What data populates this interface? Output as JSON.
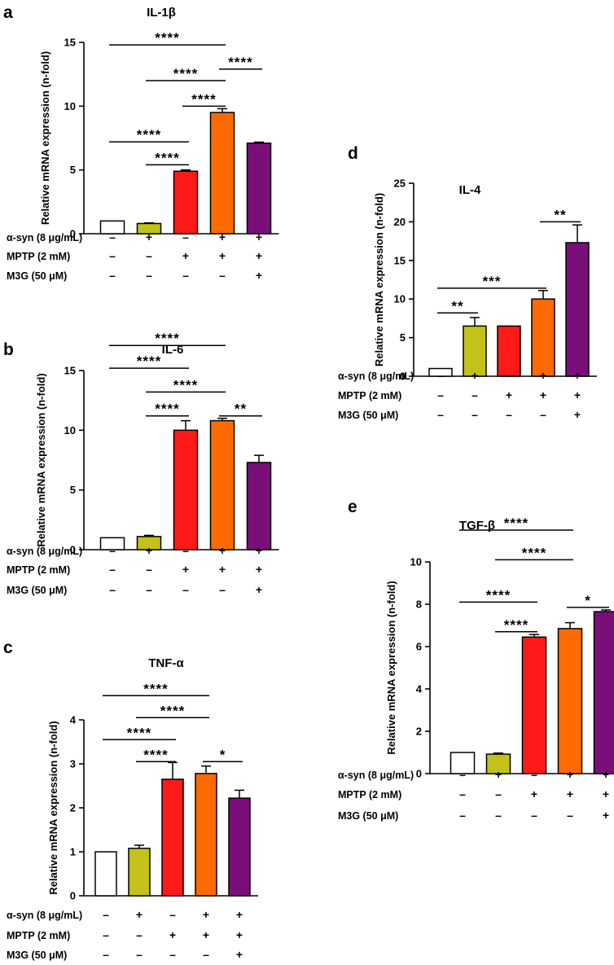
{
  "chart_data": [
    {
      "type": "bar",
      "panel": "a",
      "title": "IL-1β",
      "ylabel": "Relative mRNA expression (n-fold)",
      "xlabel": "",
      "ylim": [
        0,
        15
      ],
      "yticks": [
        "0",
        "5",
        "10",
        "15"
      ],
      "categories": [
        "Control",
        "α-syn",
        "MPTP",
        "α-syn + MPTP",
        "α-syn + MPTP + M3G"
      ],
      "values": [
        1.0,
        0.8,
        4.9,
        9.5,
        7.1
      ],
      "errors": [
        0,
        0.05,
        0.1,
        0.3,
        0.08
      ],
      "colors": [
        "#ffffff",
        "#c2c21a",
        "#ff1a1a",
        "#ff6a00",
        "#7a0f7a"
      ],
      "condition_labels": [
        "α-syn (8 μg/mL)",
        "MPTP (2 mM)",
        "M3G (50 μM)"
      ],
      "conditions": [
        [
          "–",
          "+",
          "–",
          "+",
          "+"
        ],
        [
          "–",
          "–",
          "+",
          "+",
          "+"
        ],
        [
          "–",
          "–",
          "–",
          "–",
          "+"
        ]
      ],
      "significance": [
        {
          "from": 0,
          "to": 3,
          "label": "****",
          "level": 14.8
        },
        {
          "from": 3,
          "to": 4,
          "label": "****",
          "level": 12.9
        },
        {
          "from": 1,
          "to": 3,
          "label": "****",
          "level": 12.0
        },
        {
          "from": 2,
          "to": 3,
          "label": "****",
          "level": 10.0
        },
        {
          "from": 0,
          "to": 2,
          "label": "****",
          "level": 7.2
        },
        {
          "from": 1,
          "to": 2,
          "label": "****",
          "level": 5.4
        }
      ]
    },
    {
      "type": "bar",
      "panel": "b",
      "title": "IL-6",
      "ylabel": "Relative mRNA expression (n-fold)",
      "xlabel": "",
      "ylim": [
        0,
        15
      ],
      "yticks": [
        "0",
        "5",
        "10",
        "15"
      ],
      "categories": [
        "Control",
        "α-syn",
        "MPTP",
        "α-syn + MPTP",
        "α-syn + MPTP + M3G"
      ],
      "values": [
        1.0,
        1.1,
        10.0,
        10.8,
        7.3
      ],
      "errors": [
        0,
        0.1,
        0.8,
        0.2,
        0.6
      ],
      "colors": [
        "#ffffff",
        "#c2c21a",
        "#ff1a1a",
        "#ff6a00",
        "#7a0f7a"
      ],
      "condition_labels": [
        "α-syn (8 μg/mL)",
        "MPTP (2 mM)",
        "M3G (50 μM)"
      ],
      "conditions": [
        [
          "–",
          "+",
          "–",
          "+",
          "+"
        ],
        [
          "–",
          "–",
          "+",
          "+",
          "+"
        ],
        [
          "–",
          "–",
          "–",
          "–",
          "+"
        ]
      ],
      "significance": [
        {
          "from": 0,
          "to": 3,
          "label": "****",
          "level": 17.1
        },
        {
          "from": 0,
          "to": 2,
          "label": "****",
          "level": 15.2
        },
        {
          "from": 1,
          "to": 3,
          "label": "****",
          "level": 13.2
        },
        {
          "from": 1,
          "to": 2,
          "label": "****",
          "level": 11.2
        },
        {
          "from": 3,
          "to": 4,
          "label": "**",
          "level": 11.2
        }
      ]
    },
    {
      "type": "bar",
      "panel": "c",
      "title": "TNF-α",
      "ylabel": "Relative mRNA expression (n-fold)",
      "xlabel": "",
      "ylim": [
        0,
        4
      ],
      "yticks": [
        "0",
        "1",
        "2",
        "3",
        "4"
      ],
      "categories": [
        "Control",
        "α-syn",
        "MPTP",
        "α-syn + MPTP",
        "α-syn + MPTP + M3G"
      ],
      "values": [
        1.0,
        1.08,
        2.65,
        2.78,
        2.22
      ],
      "errors": [
        0,
        0.07,
        0.38,
        0.17,
        0.18
      ],
      "colors": [
        "#ffffff",
        "#c2c21a",
        "#ff1a1a",
        "#ff6a00",
        "#7a0f7a"
      ],
      "condition_labels": [
        "α-syn (8 μg/mL)",
        "MPTP (2 mM)",
        "M3G (50 μM)"
      ],
      "conditions": [
        [
          "–",
          "+",
          "–",
          "+",
          "+"
        ],
        [
          "–",
          "–",
          "+",
          "+",
          "+"
        ],
        [
          "–",
          "–",
          "–",
          "–",
          "+"
        ]
      ],
      "significance": [
        {
          "from": 0,
          "to": 3,
          "label": "****",
          "level": 4.55
        },
        {
          "from": 1,
          "to": 3,
          "label": "****",
          "level": 4.05
        },
        {
          "from": 0,
          "to": 2,
          "label": "****",
          "level": 3.55
        },
        {
          "from": 1,
          "to": 2,
          "label": "****",
          "level": 3.05
        },
        {
          "from": 3,
          "to": 4,
          "label": "*",
          "level": 3.05
        }
      ]
    },
    {
      "type": "bar",
      "panel": "d",
      "title": "IL-4",
      "ylabel": "Relative mRNA expression (n-fold)",
      "xlabel": "",
      "ylim": [
        0,
        25
      ],
      "yticks": [
        "0",
        "5",
        "10",
        "15",
        "20",
        "25"
      ],
      "categories": [
        "Control",
        "α-syn",
        "MPTP",
        "α-syn + MPTP",
        "α-syn + MPTP + M3G"
      ],
      "values": [
        1.0,
        6.5,
        6.5,
        10.0,
        17.3
      ],
      "errors": [
        0,
        1.1,
        0,
        1.1,
        2.3
      ],
      "colors": [
        "#ffffff",
        "#c2c21a",
        "#ff1a1a",
        "#ff6a00",
        "#7a0f7a"
      ],
      "condition_labels": [
        "α-syn (8 μg/mL)",
        "MPTP (2 mM)",
        "M3G (50 μM)"
      ],
      "conditions": [
        [
          "–",
          "+",
          "–",
          "+",
          "+"
        ],
        [
          "–",
          "–",
          "+",
          "+",
          "+"
        ],
        [
          "–",
          "–",
          "–",
          "–",
          "+"
        ]
      ],
      "significance": [
        {
          "from": 3,
          "to": 4,
          "label": "**",
          "level": 20.0
        },
        {
          "from": 0,
          "to": 3,
          "label": "***",
          "level": 11.4
        },
        {
          "from": 0,
          "to": 1,
          "label": "**",
          "level": 8.2
        }
      ]
    },
    {
      "type": "bar",
      "panel": "e",
      "title": "TGF-β",
      "ylabel": "Relative mRNA expression (n-fold)",
      "xlabel": "",
      "ylim": [
        0,
        10
      ],
      "yticks": [
        "0",
        "2",
        "4",
        "6",
        "8",
        "10"
      ],
      "categories": [
        "Control",
        "α-syn",
        "MPTP",
        "α-syn + MPTP",
        "α-syn + MPTP + M3G"
      ],
      "values": [
        1.0,
        0.92,
        6.45,
        6.85,
        7.65
      ],
      "errors": [
        0,
        0.05,
        0.12,
        0.28,
        0.08
      ],
      "colors": [
        "#ffffff",
        "#c2c21a",
        "#ff1a1a",
        "#ff6a00",
        "#7a0f7a"
      ],
      "condition_labels": [
        "α-syn (8 μg/mL)",
        "MPTP (2 mM)",
        "M3G (50 μM)"
      ],
      "conditions": [
        [
          "–",
          "+",
          "–",
          "+",
          "+"
        ],
        [
          "–",
          "–",
          "+",
          "+",
          "+"
        ],
        [
          "–",
          "–",
          "–",
          "–",
          "+"
        ]
      ],
      "significance": [
        {
          "from": 0,
          "to": 3,
          "label": "****",
          "level": 11.5
        },
        {
          "from": 1,
          "to": 3,
          "label": "****",
          "level": 10.1
        },
        {
          "from": 0,
          "to": 2,
          "label": "****",
          "level": 8.1
        },
        {
          "from": 1,
          "to": 2,
          "label": "****",
          "level": 6.7
        },
        {
          "from": 3,
          "to": 4,
          "label": "*",
          "level": 7.85
        }
      ]
    }
  ]
}
